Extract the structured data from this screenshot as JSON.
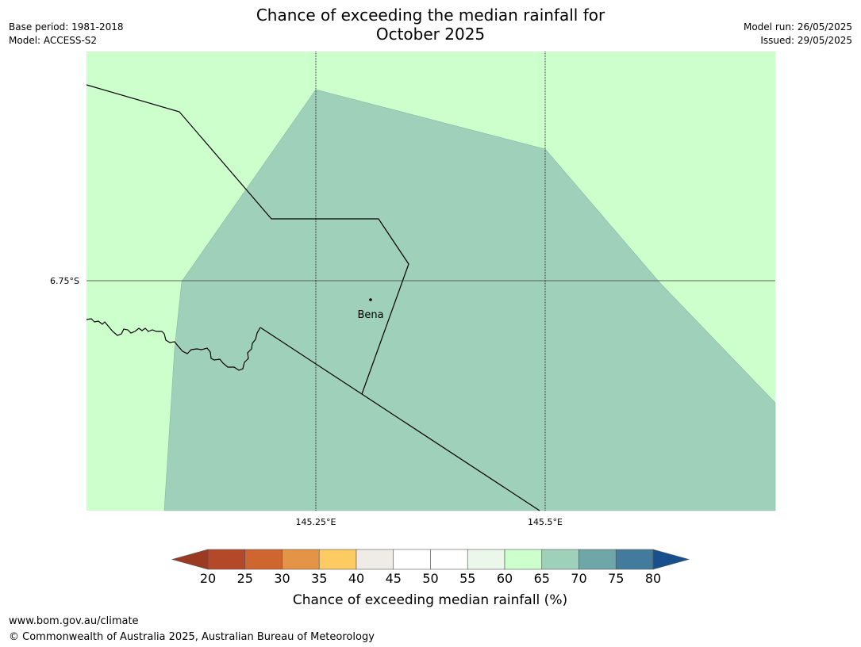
{
  "title_line1": "Chance of exceeding the median rainfall for",
  "title_line2": "October 2025",
  "meta_left": {
    "base_period": "Base period: 1981-2018",
    "model": "Model: ACCESS-S2"
  },
  "meta_right": {
    "model_run": "Model run: 26/05/2025",
    "issued": "Issued: 29/05/2025"
  },
  "map": {
    "background_color": "#ccffcc",
    "region_color": "#9fd1ba",
    "latitude_labels": [
      "6.75°S"
    ],
    "longitude_labels": [
      "145.25°E",
      "145.5°E"
    ],
    "places": [
      {
        "name": "Bena"
      }
    ]
  },
  "colorbar": {
    "ticks": [
      "20",
      "25",
      "30",
      "35",
      "40",
      "45",
      "50",
      "55",
      "60",
      "65",
      "70",
      "75",
      "80"
    ],
    "colors": [
      "#9b3a23",
      "#b4492a",
      "#cf6630",
      "#e39446",
      "#fecb62",
      "#efebe7",
      "#ffffff",
      "#ffffff",
      "#eaf7ea",
      "#ccffcc",
      "#9fd1ba",
      "#6fa6a8",
      "#437b9c",
      "#17508d"
    ],
    "label": "Chance of exceeding median rainfall (%)"
  },
  "footer": {
    "url": "www.bom.gov.au/climate",
    "copyright": "© Commonwealth of Australia 2025, Australian Bureau of Meteorology"
  }
}
